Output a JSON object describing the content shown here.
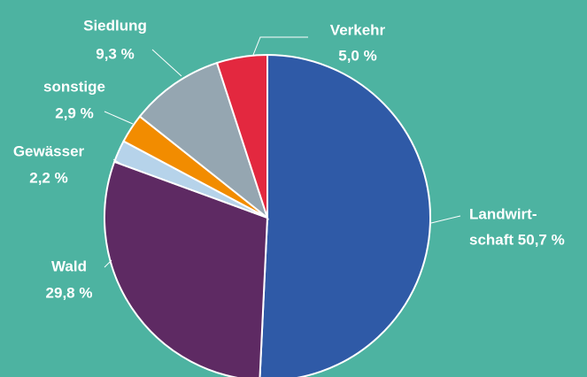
{
  "chart_data": {
    "type": "pie",
    "labels": [
      [
        "Landwirt-",
        "schaft 50,7 %"
      ],
      [
        "Wald",
        "29,8 %"
      ],
      [
        "Gewässer",
        "2,2 %"
      ],
      [
        "sonstige",
        "2,9 %"
      ],
      [
        "Siedlung",
        "9,3 %"
      ],
      [
        "Verkehr",
        "5,0 %"
      ]
    ],
    "values": [
      50.7,
      29.8,
      2.2,
      2.9,
      9.3,
      5.0
    ],
    "colors": [
      "#2f5aa7",
      "#5e2a63",
      "#b6d3ea",
      "#f28c00",
      "#95a6b1",
      "#e3283f"
    ]
  }
}
